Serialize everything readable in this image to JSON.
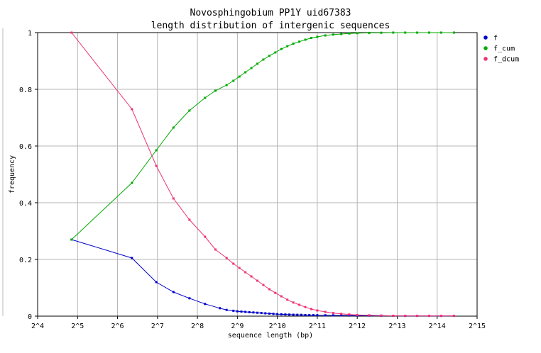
{
  "chart_data": {
    "type": "line",
    "title": "Novosphingobium PP1Y uid67383",
    "subtitle": "length distribution of intergenic sequences",
    "xlabel": "sequence length (bp)",
    "ylabel": "frequency",
    "x_scale": "log2",
    "xlim_exp": [
      4,
      15
    ],
    "ylim": [
      0,
      1
    ],
    "grid": true,
    "legend_position": "top-right",
    "x_ticks": [
      "2^4",
      "2^5",
      "2^6",
      "2^7",
      "2^8",
      "2^9",
      "2^10",
      "2^11",
      "2^12",
      "2^13",
      "2^14",
      "2^15"
    ],
    "y_ticks": [
      "0",
      "0.2",
      "0.4",
      "0.6",
      "0.8",
      "1"
    ],
    "series": [
      {
        "name": "f",
        "color": "#0000cc",
        "x_exp": [
          4.85,
          6.36,
          6.97,
          7.4,
          7.8,
          8.19,
          8.56,
          8.73,
          8.9,
          9.0,
          9.1,
          9.2,
          9.3,
          9.4,
          9.5,
          9.6,
          9.7,
          9.8,
          9.9,
          10.0,
          10.1,
          10.2,
          10.3,
          10.4,
          10.5,
          10.6,
          10.7,
          10.8,
          10.9,
          11.0,
          11.2,
          11.4,
          11.6,
          11.8,
          12.0,
          12.3,
          12.6,
          12.9,
          13.2,
          13.5,
          13.8,
          14.1,
          14.42
        ],
        "values": [
          0.27,
          0.205,
          0.12,
          0.085,
          0.063,
          0.043,
          0.028,
          0.022,
          0.019,
          0.017,
          0.016,
          0.015,
          0.014,
          0.013,
          0.012,
          0.011,
          0.01,
          0.009,
          0.008,
          0.007,
          0.0065,
          0.006,
          0.0055,
          0.005,
          0.0048,
          0.0045,
          0.004,
          0.0038,
          0.0035,
          0.0032,
          0.003,
          0.0028,
          0.0025,
          0.0022,
          0.002,
          0.0018,
          0.0015,
          0.0012,
          0.001,
          0.001,
          0.001,
          0.001,
          0.001
        ]
      },
      {
        "name": "f_cum",
        "color": "#00aa00",
        "x_exp": [
          4.85,
          6.36,
          6.97,
          7.4,
          7.8,
          8.19,
          8.45,
          8.73,
          8.9,
          9.05,
          9.2,
          9.35,
          9.5,
          9.65,
          9.8,
          9.95,
          10.1,
          10.25,
          10.4,
          10.55,
          10.7,
          10.85,
          11.0,
          11.2,
          11.4,
          11.6,
          11.8,
          12.0,
          12.3,
          12.6,
          12.9,
          13.2,
          13.5,
          13.8,
          14.1,
          14.42
        ],
        "values": [
          0.27,
          0.47,
          0.585,
          0.665,
          0.725,
          0.77,
          0.795,
          0.815,
          0.83,
          0.845,
          0.86,
          0.875,
          0.89,
          0.905,
          0.918,
          0.93,
          0.942,
          0.952,
          0.961,
          0.968,
          0.975,
          0.981,
          0.985,
          0.99,
          0.993,
          0.995,
          0.997,
          0.998,
          0.999,
          0.9995,
          1.0,
          1.0,
          1.0,
          1.0,
          1.0,
          1.0
        ]
      },
      {
        "name": "f_dcum",
        "color": "#ee3377",
        "x_exp": [
          4.85,
          6.36,
          6.97,
          7.4,
          7.8,
          8.19,
          8.45,
          8.73,
          8.9,
          9.05,
          9.2,
          9.35,
          9.5,
          9.65,
          9.8,
          9.95,
          10.1,
          10.25,
          10.4,
          10.55,
          10.7,
          10.85,
          11.0,
          11.2,
          11.4,
          11.6,
          11.8,
          12.0,
          12.3,
          12.6,
          12.9,
          13.2,
          13.5,
          13.8,
          14.1,
          14.42
        ],
        "values": [
          1.0,
          0.73,
          0.53,
          0.415,
          0.34,
          0.28,
          0.235,
          0.205,
          0.185,
          0.17,
          0.155,
          0.14,
          0.125,
          0.11,
          0.095,
          0.082,
          0.07,
          0.058,
          0.048,
          0.04,
          0.032,
          0.025,
          0.02,
          0.015,
          0.011,
          0.008,
          0.006,
          0.004,
          0.003,
          0.002,
          0.001,
          0.001,
          0.001,
          0.001,
          0.001,
          0.001
        ]
      }
    ]
  }
}
